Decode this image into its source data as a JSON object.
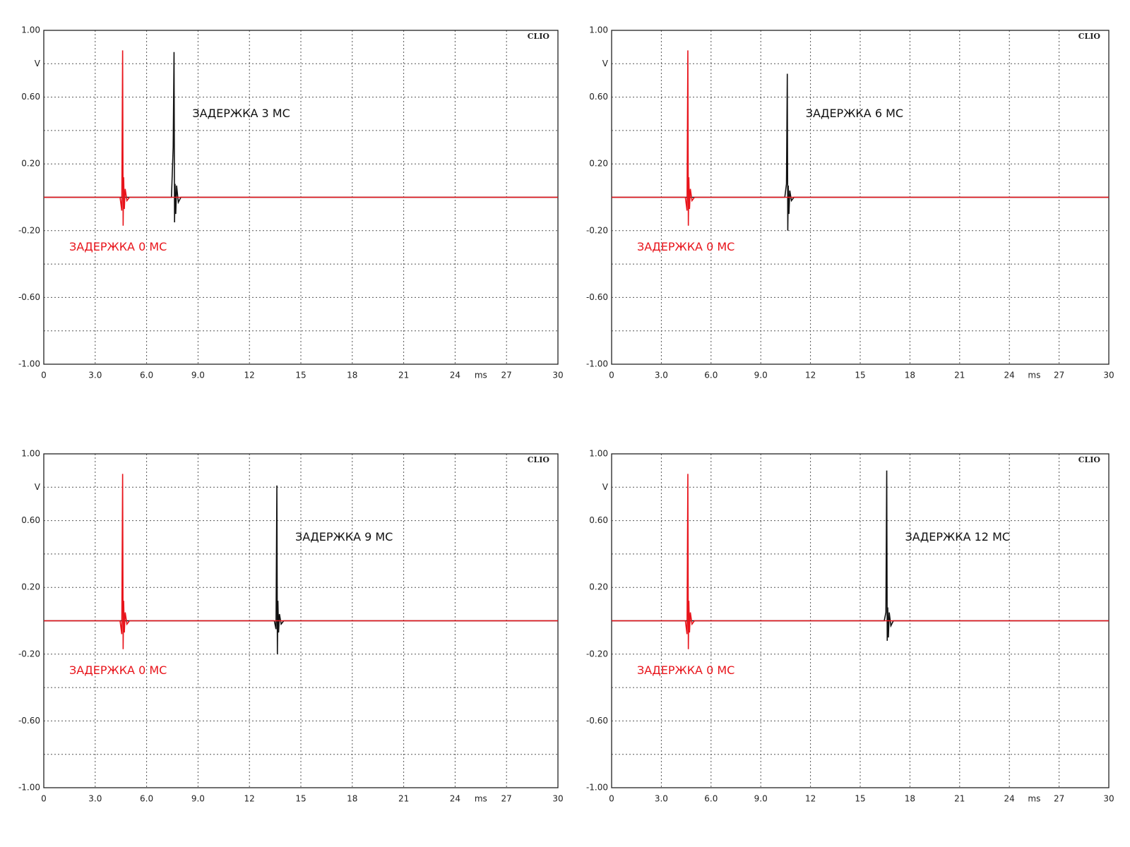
{
  "chart_data": [
    {
      "type": "line",
      "brand": "CLIO",
      "xlabel": "ms",
      "ylabel": "V",
      "xlim": [
        0,
        30
      ],
      "ylim": [
        -1,
        1
      ],
      "xticks": [
        0,
        {
          "value": 3,
          "label": "3.0"
        },
        {
          "value": 6,
          "label": "6.0"
        },
        {
          "value": 9,
          "label": "9.0"
        },
        12,
        15,
        18,
        21,
        24,
        27,
        30
      ],
      "yticks": [
        {
          "value": -1,
          "label": "-1.00"
        },
        {
          "value": -0.6,
          "label": "-0.60"
        },
        {
          "value": -0.2,
          "label": "-0.20"
        },
        {
          "value": 0.2,
          "label": "0.20"
        },
        {
          "value": 0.6,
          "label": "0.60"
        },
        {
          "value": 1,
          "label": "1.00"
        }
      ],
      "yminor": [
        -0.8,
        -0.4,
        0,
        0.4,
        0.8
      ],
      "grid": true,
      "x": [
        0,
        4.45,
        4.55,
        4.6,
        4.63,
        4.66,
        4.7,
        4.75,
        4.85,
        5.0,
        7.45,
        7.55,
        7.6,
        7.63,
        7.66,
        7.7,
        7.75,
        7.85,
        8.0,
        30
      ],
      "series": [
        {
          "name": "ЗАДЕРЖКА 3 МС",
          "color": "#111111",
          "values": [
            0,
            0,
            0,
            0,
            0,
            0,
            0,
            0,
            0,
            0,
            0,
            0.3,
            0.87,
            -0.15,
            0.08,
            -0.1,
            0.07,
            -0.03,
            0,
            0
          ]
        },
        {
          "name": "ЗАДЕРЖКА 0 МС",
          "color": "#e8141b",
          "values": [
            0,
            0,
            -0.08,
            0.88,
            -0.17,
            0.12,
            -0.07,
            0.05,
            -0.02,
            0,
            0,
            0,
            0,
            0,
            0,
            0,
            0,
            0,
            0,
            0
          ]
        }
      ]
    },
    {
      "type": "line",
      "brand": "CLIO",
      "xlabel": "ms",
      "ylabel": "V",
      "xlim": [
        0,
        30
      ],
      "ylim": [
        -1,
        1
      ],
      "xticks": [
        0,
        {
          "value": 3,
          "label": "3.0"
        },
        {
          "value": 6,
          "label": "6.0"
        },
        {
          "value": 9,
          "label": "9.0"
        },
        12,
        15,
        18,
        21,
        24,
        27,
        30
      ],
      "yticks": [
        {
          "value": -1,
          "label": "-1.00"
        },
        {
          "value": -0.6,
          "label": "-0.60"
        },
        {
          "value": -0.2,
          "label": "-0.20"
        },
        {
          "value": 0.2,
          "label": "0.20"
        },
        {
          "value": 0.6,
          "label": "0.60"
        },
        {
          "value": 1,
          "label": "1.00"
        }
      ],
      "yminor": [
        -0.8,
        -0.4,
        0,
        0.4,
        0.8
      ],
      "grid": true,
      "x": [
        0,
        4.45,
        4.55,
        4.6,
        4.63,
        4.66,
        4.7,
        4.75,
        4.85,
        5.0,
        10.45,
        10.55,
        10.6,
        10.63,
        10.66,
        10.7,
        10.75,
        10.85,
        11.0,
        30
      ],
      "series": [
        {
          "name": "ЗАДЕРЖКА 6 МС",
          "color": "#111111",
          "values": [
            0,
            0,
            0,
            0,
            0,
            0,
            0,
            0,
            0,
            0,
            0,
            0.08,
            0.74,
            -0.2,
            0.07,
            -0.1,
            0.04,
            -0.02,
            0,
            0
          ]
        },
        {
          "name": "ЗАДЕРЖКА 0 МС",
          "color": "#e8141b",
          "values": [
            0,
            0,
            -0.08,
            0.88,
            -0.17,
            0.12,
            -0.07,
            0.05,
            -0.02,
            0,
            0,
            0,
            0,
            0,
            0,
            0,
            0,
            0,
            0,
            0
          ]
        }
      ]
    },
    {
      "type": "line",
      "brand": "CLIO",
      "xlabel": "ms",
      "ylabel": "V",
      "xlim": [
        0,
        30
      ],
      "ylim": [
        -1,
        1
      ],
      "xticks": [
        0,
        {
          "value": 3,
          "label": "3.0"
        },
        {
          "value": 6,
          "label": "6.0"
        },
        {
          "value": 9,
          "label": "9.0"
        },
        12,
        15,
        18,
        21,
        24,
        27,
        30
      ],
      "yticks": [
        {
          "value": -1,
          "label": "-1.00"
        },
        {
          "value": -0.6,
          "label": "-0.60"
        },
        {
          "value": -0.2,
          "label": "-0.20"
        },
        {
          "value": 0.2,
          "label": "0.20"
        },
        {
          "value": 0.6,
          "label": "0.60"
        },
        {
          "value": 1,
          "label": "1.00"
        }
      ],
      "yminor": [
        -0.8,
        -0.4,
        0,
        0.4,
        0.8
      ],
      "grid": true,
      "x": [
        0,
        4.45,
        4.55,
        4.6,
        4.63,
        4.66,
        4.7,
        4.75,
        4.85,
        5.0,
        13.45,
        13.55,
        13.6,
        13.63,
        13.66,
        13.7,
        13.75,
        13.85,
        14.0,
        30
      ],
      "series": [
        {
          "name": "ЗАДЕРЖКА 9 МС",
          "color": "#111111",
          "values": [
            0,
            0,
            0,
            0,
            0,
            0,
            0,
            0,
            0,
            0,
            0,
            -0.05,
            0.81,
            -0.2,
            0.12,
            -0.07,
            0.04,
            -0.02,
            0,
            0
          ]
        },
        {
          "name": "ЗАДЕРЖКА 0 МС",
          "color": "#e8141b",
          "values": [
            0,
            0,
            -0.08,
            0.88,
            -0.17,
            0.12,
            -0.07,
            0.05,
            -0.02,
            0,
            0,
            0,
            0,
            0,
            0,
            0,
            0,
            0,
            0,
            0
          ]
        }
      ]
    },
    {
      "type": "line",
      "brand": "CLIO",
      "xlabel": "ms",
      "ylabel": "V",
      "xlim": [
        0,
        30
      ],
      "ylim": [
        -1,
        1
      ],
      "xticks": [
        0,
        {
          "value": 3,
          "label": "3.0"
        },
        {
          "value": 6,
          "label": "6.0"
        },
        {
          "value": 9,
          "label": "9.0"
        },
        12,
        15,
        18,
        21,
        24,
        27,
        30
      ],
      "yticks": [
        {
          "value": -1,
          "label": "-1.00"
        },
        {
          "value": -0.6,
          "label": "-0.60"
        },
        {
          "value": -0.2,
          "label": "-0.20"
        },
        {
          "value": 0.2,
          "label": "0.20"
        },
        {
          "value": 0.6,
          "label": "0.60"
        },
        {
          "value": 1,
          "label": "1.00"
        }
      ],
      "yminor": [
        -0.8,
        -0.4,
        0,
        0.4,
        0.8
      ],
      "grid": true,
      "x": [
        0,
        4.45,
        4.55,
        4.6,
        4.63,
        4.66,
        4.7,
        4.75,
        4.85,
        5.0,
        16.45,
        16.55,
        16.6,
        16.63,
        16.66,
        16.7,
        16.75,
        16.85,
        17.0,
        30
      ],
      "series": [
        {
          "name": "ЗАДЕРЖКА 12 МС",
          "color": "#111111",
          "values": [
            0,
            0,
            0,
            0,
            0,
            0,
            0,
            0,
            0,
            0,
            0,
            0.05,
            0.9,
            -0.12,
            0.08,
            -0.1,
            0.05,
            -0.03,
            0,
            0
          ]
        },
        {
          "name": "ЗАДЕРЖКА 0 МС",
          "color": "#e8141b",
          "values": [
            0,
            0,
            -0.08,
            0.88,
            -0.17,
            0.12,
            -0.07,
            0.05,
            -0.02,
            0,
            0,
            0,
            0,
            0,
            0,
            0,
            0,
            0,
            0,
            0
          ]
        }
      ]
    }
  ]
}
